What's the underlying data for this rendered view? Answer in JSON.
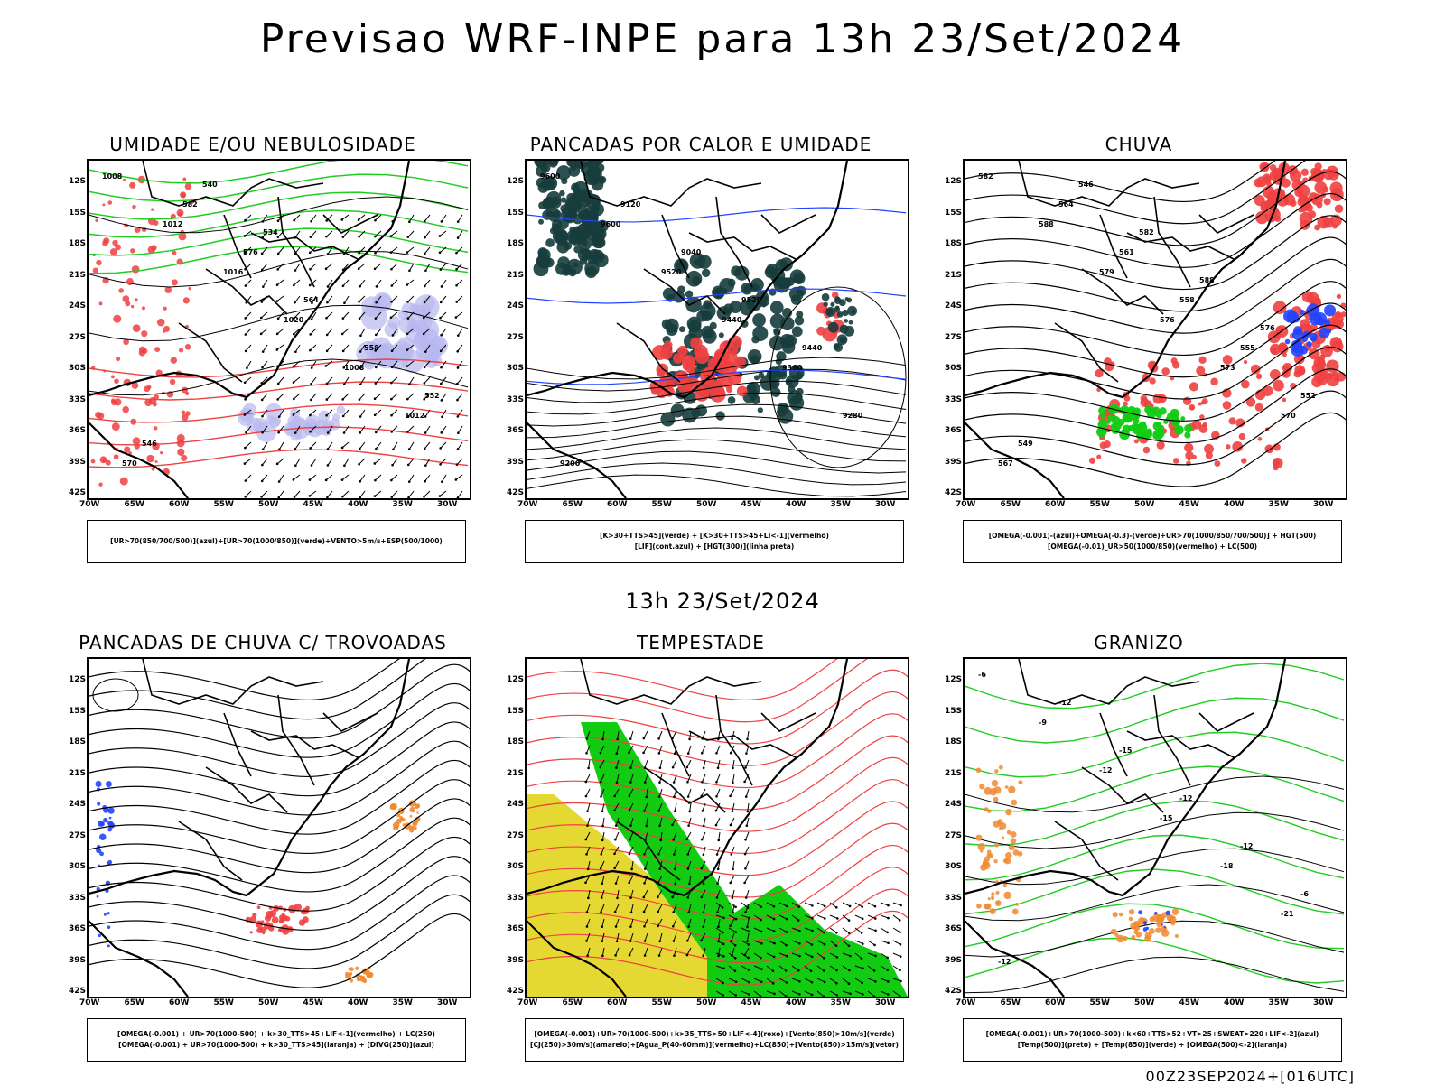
{
  "header": {
    "title": "Previsao WRF-INPE  para 13h 23/Set/2024"
  },
  "subtitle": "13h 23/Set/2024",
  "footer": "00Z23SEP2024+[016UTC]",
  "axes": {
    "lat_labels": [
      "12S",
      "15S",
      "18S",
      "21S",
      "24S",
      "27S",
      "30S",
      "33S",
      "36S",
      "39S",
      "42S"
    ],
    "lon_labels": [
      "70W",
      "65W",
      "60W",
      "55W",
      "50W",
      "45W",
      "40W",
      "35W",
      "30W"
    ]
  },
  "panels": [
    {
      "title": "UMIDADE E/OU NEBULOSIDADE",
      "legend": [
        "[UR>70(850/700/500)](azul)+[UR>70(1000/850)](verde)+VENTO>5m/s+ESP(500/1000)"
      ],
      "labels": [
        "1008",
        "1012",
        "1016",
        "1020",
        "1008",
        "1012",
        "570",
        "582",
        "576",
        "564",
        "558",
        "552",
        "546",
        "540",
        "534"
      ]
    },
    {
      "title": "PANCADAS POR CALOR E UMIDADE",
      "legend": [
        "[K>30+TTS>45](verde) + [K>30+TTS>45+LI<-1](vermelho)",
        "[LIF](cont.azul) + [HGT(300)](linha preta)"
      ],
      "labels": [
        "9600",
        "9600",
        "9520",
        "9440",
        "9360",
        "9280",
        "9200",
        "9120",
        "9040",
        "9520",
        "9440"
      ]
    },
    {
      "title": "CHUVA",
      "legend": [
        "[OMEGA(-0.001)-(azul)+OMEGA(-0.3)-(verde)+UR>70(1000/850/700/500)] + HGT(500)",
        "[OMEGA(-0.01)_UR>50(1000/850)(vermelho) + LC(500)"
      ],
      "labels": [
        "582",
        "588",
        "579",
        "576",
        "573",
        "570",
        "567",
        "564",
        "561",
        "558",
        "555",
        "552",
        "549",
        "546",
        "582",
        "588",
        "576"
      ]
    },
    {
      "title": "PANCADAS DE CHUVA C/ TROVOADAS",
      "legend": [
        "[OMEGA(-0.001) + UR>70(1000-500) + k>30_TTS>45+LIF<-1](vermelho) + LC(250)",
        "[OMEGA(-0.001) + UR>70(1000-500) + k>30_TTS>45](laranja) + [DIVG(250)](azul)"
      ],
      "labels": []
    },
    {
      "title": "TEMPESTADE",
      "legend": [
        "[OMEGA(-0.001)+UR>70(1000-500)+k>35_TTS>50+LIF<-4](roxo)+[Vento(850)>10m/s](verde)",
        "[CJ(250)>30m/s](amarelo)+[Agua_P(40-60mm)](vermelho)+LC(850)+[Vento(850)>15m/s](vetor)"
      ],
      "labels": []
    },
    {
      "title": "GRANIZO",
      "legend": [
        "[OMEGA(-0.001)+UR>70(1000-500)+k<60+TTS>52+VT>25+SWEAT>220+LIF<-2](azul)",
        "[Temp(500)](preto) + [Temp(850)](verde) + [OMEGA(500)<-2](laranja)"
      ],
      "labels": [
        "-6",
        "-9",
        "-12",
        "-15",
        "-18",
        "-21",
        "-12",
        "-12",
        "-15",
        "-12",
        "-12",
        "-6"
      ]
    }
  ],
  "colors": {
    "black": "#000000",
    "red": "#f04040",
    "green": "#22cc22",
    "blue": "#2244ff",
    "lavender": "#b8b8f0",
    "darkteal": "#173c3c",
    "yellow": "#e6d832",
    "orange": "#f08a30",
    "bright_green": "#11cc11"
  }
}
